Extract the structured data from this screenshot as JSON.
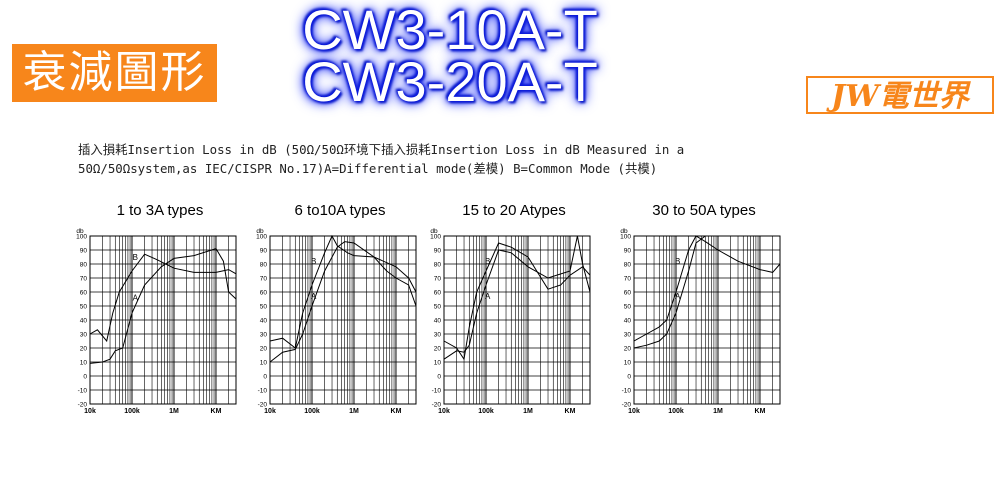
{
  "header": {
    "badge_text": "衰減圖形",
    "model_line1": "CW3-10A-T",
    "model_line2": "CW3-20A-T",
    "brand_text": "JW電世界"
  },
  "description": {
    "line1": "插入損耗Insertion Loss in dB (50Ω/50Ω环境下插入损耗Insertion Loss in dB Measured in a",
    "line2": "50Ω/50Ωsystem,as IEC/CISPR No.17)A=Differential mode(差模) B=Common Mode (共模)"
  },
  "colors": {
    "badge_bg": "#f7861b",
    "brand": "#f7861b",
    "model_glow": "#0a18d8"
  },
  "chart_data": [
    {
      "type": "line",
      "title": "1 to 3A types",
      "ylabel": "db",
      "ylim": [
        -20,
        100
      ],
      "yticks": [
        100,
        90,
        80,
        70,
        60,
        50,
        40,
        30,
        20,
        10,
        0,
        -10,
        -20
      ],
      "xscale": "log",
      "xlim": [
        10000,
        30000000
      ],
      "xticks": [
        {
          "value": 10000,
          "label": "10k"
        },
        {
          "value": 100000,
          "label": "100k"
        },
        {
          "value": 1000000,
          "label": "1M"
        },
        {
          "value": 10000000,
          "label": "KM"
        }
      ],
      "series": [
        {
          "name": "A",
          "x": [
            10000,
            20000,
            30000,
            40000,
            60000,
            100000,
            200000,
            500000,
            1000000,
            3000000,
            10000000,
            15000000,
            20000000,
            30000000
          ],
          "y": [
            9,
            10,
            12,
            18,
            20,
            45,
            65,
            78,
            84,
            86,
            91,
            82,
            60,
            55
          ]
        },
        {
          "name": "B",
          "x": [
            10000,
            15000,
            25000,
            35000,
            50000,
            100000,
            200000,
            400000,
            1000000,
            3000000,
            10000000,
            20000000,
            30000000
          ],
          "y": [
            30,
            33,
            25,
            45,
            60,
            75,
            87,
            83,
            77,
            74,
            74,
            76,
            73
          ]
        }
      ],
      "annotations": [
        {
          "text": "B",
          "x": 120000,
          "y": 83
        },
        {
          "text": "A",
          "x": 120000,
          "y": 54
        }
      ],
      "grid": true
    },
    {
      "type": "line",
      "title": "6 to10A types",
      "ylabel": "db",
      "ylim": [
        -20,
        100
      ],
      "yticks": [
        100,
        90,
        80,
        70,
        60,
        50,
        40,
        30,
        20,
        10,
        0,
        -10,
        -20
      ],
      "xscale": "log",
      "xlim": [
        10000,
        30000000
      ],
      "xticks": [
        {
          "value": 10000,
          "label": "10k"
        },
        {
          "value": 100000,
          "label": "100k"
        },
        {
          "value": 1000000,
          "label": "1M"
        },
        {
          "value": 10000000,
          "label": "KM"
        }
      ],
      "series": [
        {
          "name": "A",
          "x": [
            10000,
            20000,
            40000,
            60000,
            100000,
            200000,
            400000,
            600000,
            1000000,
            3000000,
            6000000,
            10000000,
            20000000,
            30000000
          ],
          "y": [
            10,
            17,
            19,
            30,
            50,
            75,
            92,
            96,
            95,
            85,
            75,
            70,
            65,
            50
          ]
        },
        {
          "name": "B",
          "x": [
            10000,
            20000,
            40000,
            60000,
            100000,
            200000,
            300000,
            400000,
            700000,
            1000000,
            3000000,
            10000000,
            20000000,
            30000000
          ],
          "y": [
            25,
            27,
            20,
            45,
            65,
            88,
            100,
            93,
            88,
            86,
            85,
            78,
            70,
            60
          ]
        }
      ],
      "annotations": [
        {
          "text": "B",
          "x": 110000,
          "y": 80
        },
        {
          "text": "A",
          "x": 110000,
          "y": 55
        }
      ],
      "grid": true
    },
    {
      "type": "line",
      "title": "15 to 20 Atypes",
      "ylabel": "db",
      "ylim": [
        -20,
        100
      ],
      "yticks": [
        100,
        90,
        80,
        70,
        60,
        50,
        40,
        30,
        20,
        10,
        0,
        -10,
        -20
      ],
      "xscale": "log",
      "xlim": [
        10000,
        30000000
      ],
      "xticks": [
        {
          "value": 10000,
          "label": "10k"
        },
        {
          "value": 100000,
          "label": "100k"
        },
        {
          "value": 1000000,
          "label": "1M"
        },
        {
          "value": 10000000,
          "label": "KM"
        }
      ],
      "series": [
        {
          "name": "A",
          "x": [
            10000,
            20000,
            30000,
            40000,
            60000,
            100000,
            200000,
            400000,
            1000000,
            3000000,
            10000000,
            15000000,
            20000000,
            30000000
          ],
          "y": [
            12,
            18,
            17,
            22,
            45,
            65,
            90,
            88,
            78,
            70,
            75,
            100,
            80,
            60
          ]
        },
        {
          "name": "B",
          "x": [
            10000,
            20000,
            30000,
            40000,
            60000,
            100000,
            200000,
            400000,
            1000000,
            3000000,
            6000000,
            10000000,
            20000000,
            30000000
          ],
          "y": [
            25,
            20,
            12,
            35,
            60,
            75,
            95,
            92,
            85,
            62,
            65,
            72,
            78,
            72
          ]
        }
      ],
      "annotations": [
        {
          "text": "B",
          "x": 110000,
          "y": 80
        },
        {
          "text": "A",
          "x": 110000,
          "y": 55
        }
      ],
      "grid": true
    },
    {
      "type": "line",
      "title": "30 to 50A types",
      "ylabel": "db",
      "ylim": [
        -20,
        100
      ],
      "yticks": [
        100,
        90,
        80,
        70,
        60,
        50,
        40,
        30,
        20,
        10,
        0,
        -10,
        -20
      ],
      "xscale": "log",
      "xlim": [
        10000,
        30000000
      ],
      "xticks": [
        {
          "value": 10000,
          "label": "10k"
        },
        {
          "value": 100000,
          "label": "100k"
        },
        {
          "value": 1000000,
          "label": "1M"
        },
        {
          "value": 10000000,
          "label": "KM"
        }
      ],
      "series": [
        {
          "name": "A",
          "x": [
            10000,
            20000,
            40000,
            60000,
            100000,
            200000,
            300000,
            500000,
            1000000,
            3000000,
            10000000,
            30000000
          ],
          "y": [
            20,
            22,
            25,
            30,
            45,
            75,
            95,
            100,
            100,
            100,
            100,
            100
          ]
        },
        {
          "name": "B",
          "x": [
            10000,
            20000,
            40000,
            60000,
            100000,
            200000,
            300000,
            500000,
            1000000,
            3000000,
            10000000,
            20000000,
            30000000
          ],
          "y": [
            25,
            30,
            35,
            40,
            60,
            90,
            100,
            96,
            90,
            82,
            76,
            74,
            80
          ]
        }
      ],
      "annotations": [
        {
          "text": "B",
          "x": 110000,
          "y": 80
        },
        {
          "text": "A",
          "x": 110000,
          "y": 55
        }
      ],
      "grid": true
    }
  ]
}
